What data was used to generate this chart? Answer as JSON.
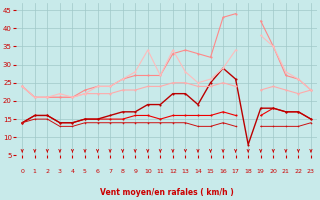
{
  "title": "",
  "xlabel": "Vent moyen/en rafales ( km/h )",
  "bg_color": "#c8eaea",
  "grid_color": "#a0c8c8",
  "xlim": [
    -0.5,
    23.5
  ],
  "ylim": [
    5,
    47
  ],
  "yticks": [
    5,
    10,
    15,
    20,
    25,
    30,
    35,
    40,
    45
  ],
  "xticks": [
    0,
    1,
    2,
    3,
    4,
    5,
    6,
    7,
    8,
    9,
    10,
    11,
    12,
    13,
    14,
    15,
    16,
    17,
    18,
    19,
    20,
    21,
    22,
    23
  ],
  "series": [
    {
      "x": [
        0,
        1,
        2,
        3,
        4,
        5,
        6,
        7,
        8,
        9,
        10,
        11,
        12,
        13,
        14,
        15,
        16,
        17,
        18,
        19,
        20,
        21,
        22,
        23
      ],
      "y": [
        14,
        16,
        16,
        14,
        14,
        15,
        15,
        15,
        15,
        16,
        16,
        15,
        16,
        16,
        16,
        16,
        17,
        16,
        null,
        16,
        18,
        17,
        17,
        15
      ],
      "color": "#ee0000",
      "lw": 0.8,
      "marker": "o",
      "ms": 1.5
    },
    {
      "x": [
        0,
        1,
        2,
        3,
        4,
        5,
        6,
        7,
        8,
        9,
        10,
        11,
        12,
        13,
        14,
        15,
        16,
        17,
        18,
        19,
        20,
        21,
        22,
        23
      ],
      "y": [
        14,
        16,
        16,
        14,
        14,
        15,
        15,
        16,
        17,
        17,
        19,
        19,
        22,
        22,
        19,
        25,
        29,
        26,
        8,
        18,
        18,
        17,
        17,
        15
      ],
      "color": "#bb0000",
      "lw": 1.0,
      "marker": "o",
      "ms": 1.5
    },
    {
      "x": [
        0,
        1,
        2,
        3,
        4,
        5,
        6,
        7,
        8,
        9,
        10,
        11,
        12,
        13,
        14,
        15,
        16,
        17,
        18,
        19,
        20,
        21,
        22,
        23
      ],
      "y": [
        14,
        15,
        15,
        13,
        13,
        14,
        14,
        14,
        14,
        14,
        14,
        14,
        14,
        14,
        13,
        13,
        14,
        13,
        null,
        13,
        13,
        13,
        13,
        14
      ],
      "color": "#cc1111",
      "lw": 0.7,
      "marker": "o",
      "ms": 1.2
    },
    {
      "x": [
        0,
        1,
        2,
        3,
        4,
        5,
        6,
        7,
        8,
        9,
        10,
        11,
        12,
        13,
        14,
        15,
        16,
        17,
        18,
        19,
        20,
        21,
        22,
        23
      ],
      "y": [
        24,
        21,
        21,
        21,
        21,
        22,
        22,
        22,
        23,
        23,
        24,
        24,
        25,
        25,
        24,
        24,
        25,
        24,
        null,
        23,
        24,
        23,
        22,
        23
      ],
      "color": "#ffaaaa",
      "lw": 0.8,
      "marker": "o",
      "ms": 1.5
    },
    {
      "x": [
        0,
        1,
        2,
        3,
        4,
        5,
        6,
        7,
        8,
        9,
        10,
        11,
        12,
        13,
        14,
        15,
        16,
        17,
        18,
        19,
        20,
        21,
        22,
        23
      ],
      "y": [
        24,
        21,
        21,
        21,
        21,
        23,
        24,
        24,
        26,
        27,
        27,
        27,
        33,
        34,
        33,
        32,
        43,
        44,
        null,
        42,
        35,
        27,
        26,
        23
      ],
      "color": "#ff8888",
      "lw": 0.8,
      "marker": "o",
      "ms": 1.5
    },
    {
      "x": [
        0,
        1,
        2,
        3,
        4,
        5,
        6,
        7,
        8,
        9,
        10,
        11,
        12,
        13,
        14,
        15,
        16,
        17,
        18,
        19,
        20,
        21,
        22,
        23
      ],
      "y": [
        24,
        21,
        21,
        22,
        21,
        22,
        24,
        24,
        26,
        28,
        34,
        27,
        34,
        28,
        25,
        26,
        29,
        34,
        null,
        38,
        35,
        28,
        26,
        23
      ],
      "color": "#ffbbbb",
      "lw": 0.8,
      "marker": "o",
      "ms": 1.5
    }
  ],
  "arrow_color": "#cc0000",
  "xlabel_color": "#cc0000",
  "tick_color": "#cc0000"
}
